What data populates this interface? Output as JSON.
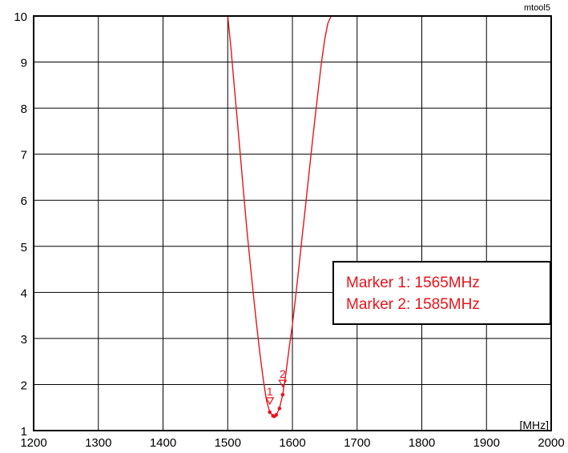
{
  "tool_label": "mtool5",
  "unit_label": "[MHz]",
  "colors": {
    "trace": "#e8141b",
    "grid": "#000000",
    "background": "#ffffff"
  },
  "legend": {
    "lines": [
      "Marker 1: 1565MHz",
      "Marker 2: 1585MHz"
    ]
  },
  "chart_data": {
    "type": "line",
    "title": "",
    "xlabel": "[MHz]",
    "ylabel": "",
    "xlim": [
      1200,
      2000
    ],
    "ylim": [
      1,
      10
    ],
    "x_ticks": [
      1200,
      1300,
      1400,
      1500,
      1600,
      1700,
      1800,
      1900,
      2000
    ],
    "y_ticks": [
      1,
      2,
      3,
      4,
      5,
      6,
      7,
      8,
      9,
      10
    ],
    "grid": true,
    "legend_position": "right",
    "series": [
      {
        "color": "#e8141b",
        "x": [
          1500,
          1505,
          1510,
          1515,
          1520,
          1525,
          1530,
          1535,
          1540,
          1545,
          1550,
          1555,
          1560,
          1565,
          1570,
          1572,
          1575,
          1580,
          1585,
          1590,
          1595,
          1600,
          1605,
          1610,
          1615,
          1620,
          1625,
          1630,
          1635,
          1640,
          1645,
          1650,
          1655,
          1660
        ],
        "y": [
          10.0,
          9.3,
          8.5,
          7.7,
          6.9,
          6.1,
          5.3,
          4.6,
          3.9,
          3.25,
          2.65,
          2.1,
          1.65,
          1.4,
          1.32,
          1.31,
          1.34,
          1.48,
          1.78,
          2.25,
          2.8,
          3.3,
          3.9,
          4.55,
          5.2,
          5.85,
          6.5,
          7.15,
          7.8,
          8.4,
          9.0,
          9.5,
          9.85,
          10.0
        ]
      }
    ],
    "markers": [
      {
        "label": "1",
        "x": 1565,
        "y": 1.4
      },
      {
        "label": "2",
        "x": 1585,
        "y": 1.78
      }
    ]
  }
}
